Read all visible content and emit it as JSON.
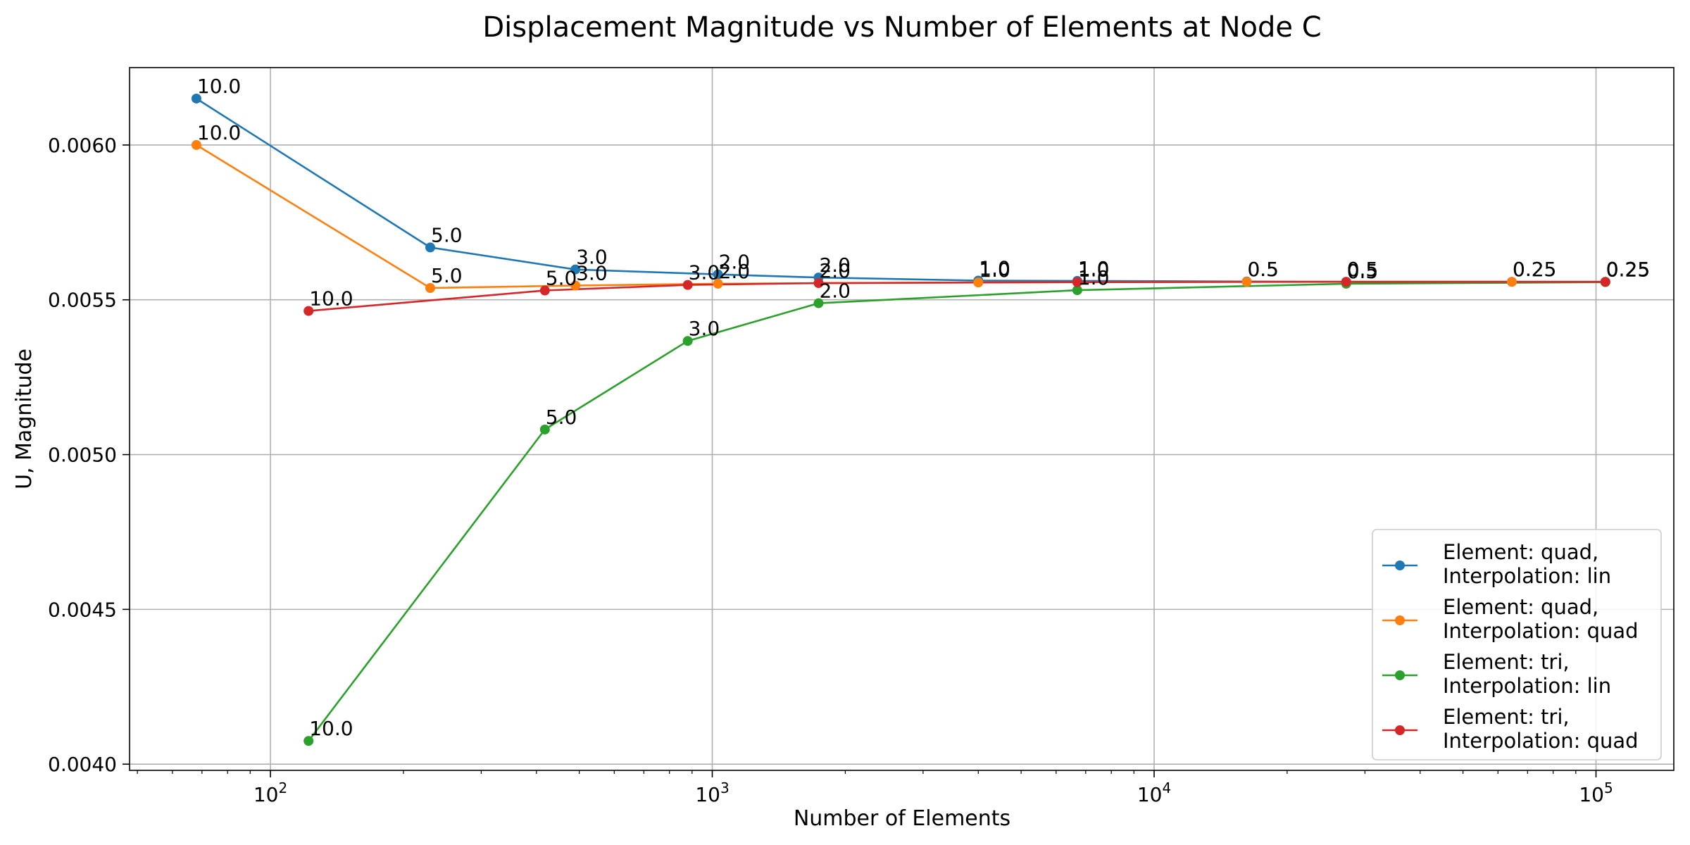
{
  "chart_data": {
    "type": "line",
    "title": "Displacement Magnitude vs Number of Elements at Node C",
    "xlabel": "Number of Elements",
    "ylabel": "U, Magnitude",
    "xscale": "log",
    "xlim": [
      48,
      150000
    ],
    "ylim": [
      0.00398,
      0.00625
    ],
    "x_ticks": [
      {
        "value": 100,
        "base": "10",
        "exp": "2"
      },
      {
        "value": 1000,
        "base": "10",
        "exp": "3"
      },
      {
        "value": 10000,
        "base": "10",
        "exp": "4"
      },
      {
        "value": 100000,
        "base": "10",
        "exp": "5"
      }
    ],
    "y_ticks": [
      {
        "value": 0.004,
        "label": "0.0040"
      },
      {
        "value": 0.0045,
        "label": "0.0045"
      },
      {
        "value": 0.005,
        "label": "0.0050"
      },
      {
        "value": 0.0055,
        "label": "0.0055"
      },
      {
        "value": 0.006,
        "label": "0.0060"
      }
    ],
    "grid": true,
    "legend_position": "lower-right",
    "series": [
      {
        "name_lines": [
          "Element: quad,",
          "Interpolation: lin"
        ],
        "color": "#1f77b4",
        "x": [
          68,
          230,
          490,
          1030,
          1740,
          4000,
          6700,
          16200,
          27200,
          64500,
          105000
        ],
        "y": [
          0.00615,
          0.005669,
          0.005598,
          0.005582,
          0.005572,
          0.005562,
          0.005561,
          0.005559,
          0.005558,
          0.005558,
          0.005558
        ],
        "labels": [
          "10.0",
          "5.0",
          "3.0",
          "2.0",
          "2.0",
          "1.0",
          "1.0",
          "0.5",
          "0.5",
          "0.25",
          "0.25"
        ]
      },
      {
        "name_lines": [
          "Element: quad,",
          "Interpolation: quad"
        ],
        "color": "#ff7f0e",
        "x": [
          68,
          230,
          490,
          1030,
          4000,
          16200,
          64500
        ],
        "y": [
          0.006,
          0.005538,
          0.005546,
          0.005552,
          0.005556,
          0.005558,
          0.005558
        ],
        "labels": [
          "10.0",
          "5.0",
          "3.0",
          "2.0",
          "1.0",
          "0.5",
          "0.25"
        ]
      },
      {
        "name_lines": [
          "Element: tri,",
          "Interpolation: lin"
        ],
        "color": "#2ca02c",
        "x": [
          122,
          418,
          880,
          1740,
          6700,
          27200,
          105000
        ],
        "y": [
          0.004075,
          0.005081,
          0.005367,
          0.005489,
          0.005531,
          0.005552,
          0.005557
        ],
        "labels": [
          "10.0",
          "5.0",
          "3.0",
          "2.0",
          "1.0",
          "0.5",
          "0.25"
        ]
      },
      {
        "name_lines": [
          "Element: tri,",
          "Interpolation: quad"
        ],
        "color": "#d62728",
        "x": [
          122,
          418,
          880,
          1740,
          6700,
          27200,
          105000
        ],
        "y": [
          0.005464,
          0.00553,
          0.005548,
          0.005554,
          0.005557,
          0.005558,
          0.005558
        ],
        "labels": [
          "10.0",
          "5.0",
          "3.0",
          "2.0",
          "1.0",
          "0.5",
          "0.25"
        ]
      }
    ]
  }
}
